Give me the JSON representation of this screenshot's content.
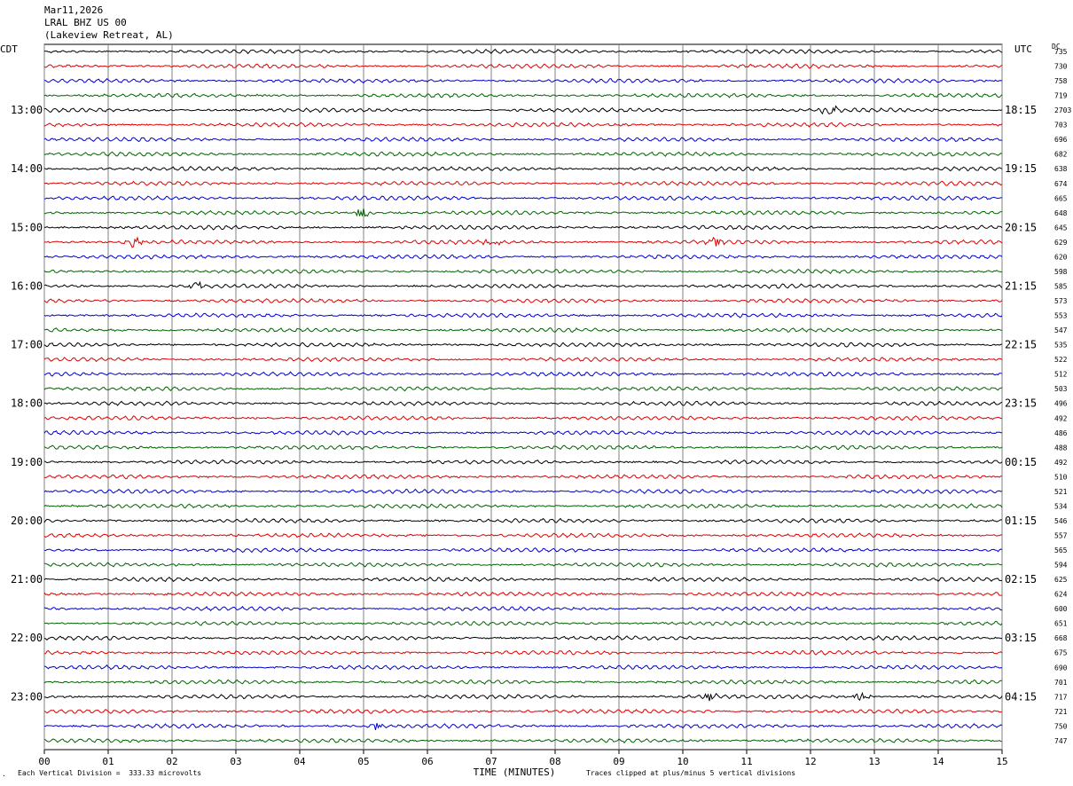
{
  "header": {
    "date": "Mar11,2026",
    "station": "LRAL BHZ US 00",
    "location": "(Lakeview Retreat, AL)"
  },
  "axis": {
    "left_label": "CDT",
    "right_label": "UTC",
    "dc_label": "DC",
    "x_title": "TIME (MINUTES)"
  },
  "footer": {
    "scale_note": "Each Vertical Division =  333.33 microvolts",
    "clip_note": "Traces clipped at plus/minus 5 vertical divisions",
    "corner_mark": "."
  },
  "colors": {
    "black": "#000000",
    "red": "#dd0000",
    "blue": "#0000cc",
    "green": "#006400",
    "grid": "#808080"
  },
  "chart_data": {
    "type": "line",
    "title": "LRAL BHZ US 00",
    "xlabel": "TIME (MINUTES)",
    "x_ticks": [
      "00",
      "01",
      "02",
      "03",
      "04",
      "05",
      "06",
      "07",
      "08",
      "09",
      "10",
      "11",
      "12",
      "13",
      "14",
      "15"
    ],
    "xlim": [
      0,
      15
    ],
    "trace_colors": [
      "#000000",
      "#dd0000",
      "#0000cc",
      "#006400"
    ],
    "left_hour_labels": [
      "13:00",
      "14:00",
      "15:00",
      "16:00",
      "17:00",
      "18:00",
      "19:00",
      "20:00",
      "21:00",
      "22:00",
      "23:00"
    ],
    "right_hour_labels": [
      "18:15",
      "19:15",
      "20:15",
      "21:15",
      "22:15",
      "23:15",
      "00:15",
      "01:15",
      "02:15",
      "03:15",
      "04:15"
    ],
    "dc_values": [
      "735",
      "730",
      "758",
      "719",
      "2703",
      "703",
      "696",
      "682",
      "638",
      "674",
      "665",
      "648",
      "645",
      "629",
      "620",
      "598",
      "585",
      "573",
      "553",
      "547",
      "535",
      "522",
      "512",
      "503",
      "496",
      "492",
      "486",
      "488",
      "492",
      "510",
      "521",
      "534",
      "546",
      "557",
      "565",
      "594",
      "625",
      "624",
      "600",
      "651",
      "668",
      "675",
      "690",
      "701",
      "717",
      "721",
      "750",
      "747"
    ],
    "events": [
      {
        "trace": 4,
        "minute": 12.3
      },
      {
        "trace": 13,
        "minute": 1.4
      },
      {
        "trace": 13,
        "minute": 7.0
      },
      {
        "trace": 13,
        "minute": 10.5
      },
      {
        "trace": 11,
        "minute": 5.0
      },
      {
        "trace": 16,
        "minute": 2.4
      },
      {
        "trace": 44,
        "minute": 10.4
      },
      {
        "trace": 44,
        "minute": 12.8
      },
      {
        "trace": 46,
        "minute": 5.2
      }
    ]
  }
}
